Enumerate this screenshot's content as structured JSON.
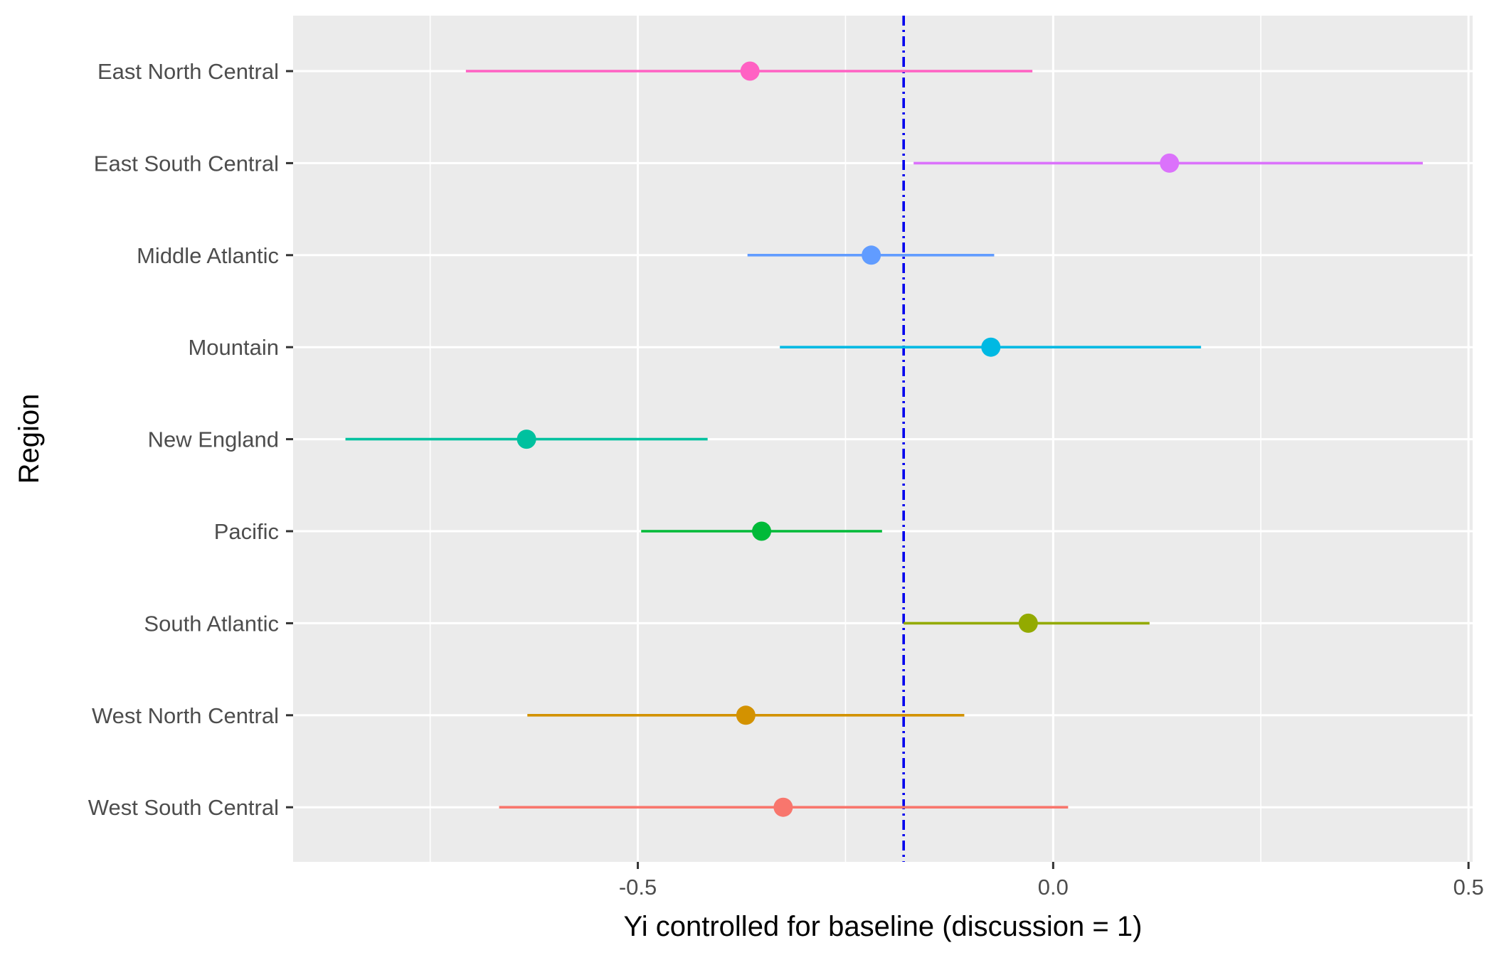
{
  "chart_data": {
    "type": "scatter",
    "subtype": "point-range",
    "title": "",
    "xlabel": "Yi controlled for baseline (discussion = 1)",
    "ylabel": "Region",
    "xlim": [
      -0.915,
      0.505
    ],
    "x_ticks": [
      -0.5,
      0.0,
      0.5
    ],
    "x_tick_labels": [
      "-0.5",
      "0.0",
      "0.5"
    ],
    "reference_line": {
      "x": -0.18,
      "style": "dashdot",
      "color": "#0000ee"
    },
    "grid": true,
    "legend": "none",
    "background": "#ebebeb",
    "categories": [
      "East North Central",
      "East South Central",
      "Middle Atlantic",
      "Mountain",
      "New England",
      "Pacific",
      "South Atlantic",
      "West North Central",
      "West South Central"
    ],
    "series": [
      {
        "category": "East North Central",
        "estimate": -0.365,
        "low": -0.707,
        "high": -0.025,
        "color": "#ff61c3"
      },
      {
        "category": "East South Central",
        "estimate": 0.14,
        "low": -0.168,
        "high": 0.445,
        "color": "#db72fb"
      },
      {
        "category": "Middle Atlantic",
        "estimate": -0.219,
        "low": -0.368,
        "high": -0.071,
        "color": "#619cff"
      },
      {
        "category": "Mountain",
        "estimate": -0.075,
        "low": -0.329,
        "high": 0.178,
        "color": "#00b9e3"
      },
      {
        "category": "New England",
        "estimate": -0.634,
        "low": -0.852,
        "high": -0.416,
        "color": "#00c19f"
      },
      {
        "category": "Pacific",
        "estimate": -0.351,
        "low": -0.496,
        "high": -0.206,
        "color": "#00ba38"
      },
      {
        "category": "South Atlantic",
        "estimate": -0.03,
        "low": -0.18,
        "high": 0.116,
        "color": "#93aa00"
      },
      {
        "category": "West North Central",
        "estimate": -0.37,
        "low": -0.633,
        "high": -0.107,
        "color": "#d39200"
      },
      {
        "category": "West South Central",
        "estimate": -0.325,
        "low": -0.667,
        "high": 0.018,
        "color": "#f8766d"
      }
    ]
  }
}
